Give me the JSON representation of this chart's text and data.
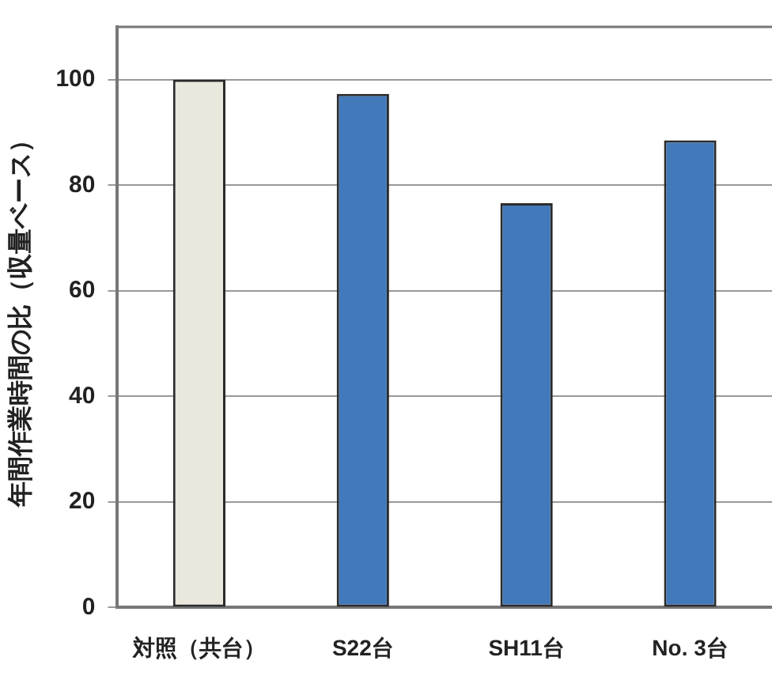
{
  "chart_data": {
    "type": "bar",
    "ylabel": "年間作業時間の比（収量ベース）",
    "categories": [
      "対照（共台）",
      "S22台",
      "SH11台",
      "No. 3台"
    ],
    "values": [
      100,
      97.3,
      76.6,
      88.5
    ],
    "colors": [
      "#eae8dc",
      "#4279ba",
      "#4279ba",
      "#4279ba"
    ],
    "ylim": [
      0,
      110
    ],
    "yticks": [
      0,
      20,
      40,
      60,
      80,
      100
    ],
    "grid": "y",
    "legend": false
  }
}
